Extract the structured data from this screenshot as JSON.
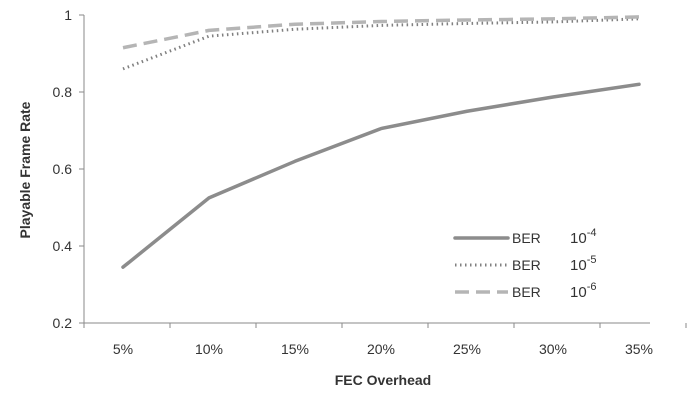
{
  "chart_data": {
    "type": "line",
    "xlabel": "FEC Overhead",
    "ylabel": "Playable Frame Rate",
    "categories": [
      "5%",
      "10%",
      "15%",
      "20%",
      "25%",
      "30%",
      "35%"
    ],
    "ylim": [
      0.2,
      1
    ],
    "yticks": [
      0.2,
      0.4,
      0.6,
      0.8,
      1
    ],
    "ytick_labels": [
      "0.2",
      "0.4",
      "0.6",
      "0.8",
      "1"
    ],
    "grid": false,
    "legend_position": "lower-right",
    "series": [
      {
        "name": "BER 10^-4",
        "legend_text": "BER",
        "legend_base": "10",
        "legend_exp": "-4",
        "style": "solid",
        "color": "#8c8c8c",
        "values": [
          0.345,
          0.525,
          0.62,
          0.705,
          0.75,
          0.787,
          0.82
        ]
      },
      {
        "name": "BER 10^-5",
        "legend_text": "BER",
        "legend_base": "10",
        "legend_exp": "-5",
        "style": "dotted",
        "color": "#808080",
        "values": [
          0.86,
          0.945,
          0.963,
          0.973,
          0.978,
          0.982,
          0.99
        ]
      },
      {
        "name": "BER 10^-6",
        "legend_text": "BER",
        "legend_base": "10",
        "legend_exp": "-6",
        "style": "dashed",
        "color": "#b5b5b5",
        "values": [
          0.915,
          0.96,
          0.976,
          0.983,
          0.987,
          0.99,
          0.995
        ]
      }
    ]
  }
}
